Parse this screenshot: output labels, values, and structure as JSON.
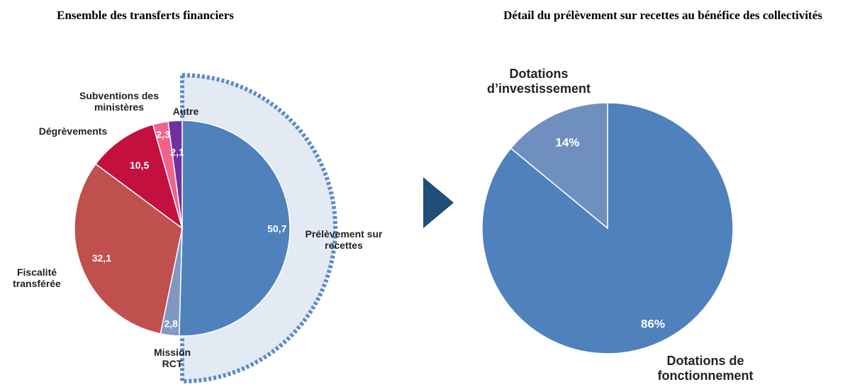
{
  "chart_data": [
    {
      "type": "pie",
      "title": "Ensemble des transferts financiers",
      "categories": [
        "Prélèvement sur recettes",
        "Mission RCT",
        "Fiscalité transférée",
        "Dégrèvements",
        "Subventions des ministères",
        "Autre"
      ],
      "values": [
        50.7,
        2.8,
        32.1,
        10.5,
        2.3,
        2.1
      ],
      "value_labels": [
        "50,7",
        "2,8",
        "32,1",
        "10,5",
        "2,3",
        "2,1"
      ],
      "colors": [
        "#4f81bd",
        "#7f99c3",
        "#c0504d",
        "#c3103e",
        "#f0648c",
        "#7030a0"
      ]
    },
    {
      "type": "pie",
      "title": "Détail du prélèvement sur recettes au bénéfice des collectivités",
      "categories": [
        "Dotations de fonctionnement",
        "Dotations d’investissement"
      ],
      "values": [
        86,
        14
      ],
      "value_labels": [
        "86%",
        "14%"
      ],
      "colors": [
        "#4f81bd",
        "#6f8fbf"
      ]
    }
  ]
}
